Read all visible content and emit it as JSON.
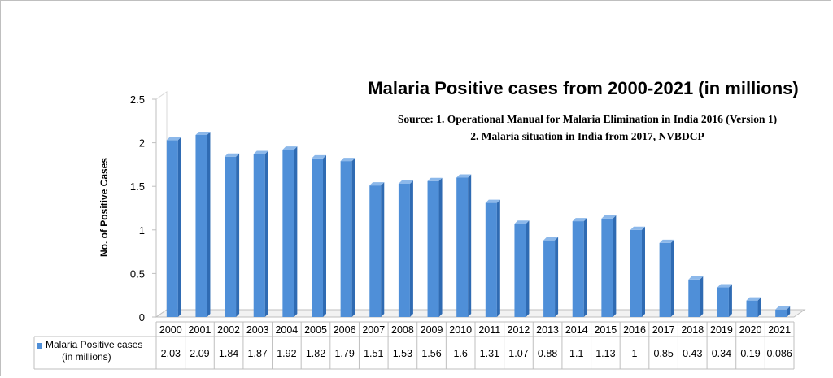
{
  "chart_data": {
    "type": "bar",
    "title": "Malaria Positive cases from 2000-2021 (in millions)",
    "source_line_1": "Source: 1. Operational Manual for Malaria Elimination in India 2016 (Version 1)",
    "source_line_2": "2. Malaria situation in India from 2017, NVBDCP",
    "ylabel": "No. of Positive Cases",
    "ylim": [
      0,
      2.5
    ],
    "yticks": [
      "0",
      "0.5",
      "1",
      "1.5",
      "2",
      "2.5"
    ],
    "categories": [
      "2000",
      "2001",
      "2002",
      "2003",
      "2004",
      "2005",
      "2006",
      "2007",
      "2008",
      "2009",
      "2010",
      "2011",
      "2012",
      "2013",
      "2014",
      "2015",
      "2016",
      "2017",
      "2018",
      "2019",
      "2020",
      "2021"
    ],
    "series": [
      {
        "name": "Malaria Positive cases (in millions)",
        "legend_line_1": "Malaria Positive cases",
        "legend_line_2": "(in millions)",
        "color": "#4f8fd8",
        "values": [
          2.03,
          2.09,
          1.84,
          1.87,
          1.92,
          1.82,
          1.79,
          1.51,
          1.53,
          1.56,
          1.6,
          1.31,
          1.07,
          0.88,
          1.1,
          1.13,
          1,
          0.85,
          0.43,
          0.34,
          0.19,
          0.086
        ],
        "value_labels": [
          "2.03",
          "2.09",
          "1.84",
          "1.87",
          "1.92",
          "1.82",
          "1.79",
          "1.51",
          "1.53",
          "1.56",
          "1.6",
          "1.31",
          "1.07",
          "0.88",
          "1.1",
          "1.13",
          "1",
          "0.85",
          "0.43",
          "0.34",
          "0.19",
          "0.086"
        ]
      }
    ],
    "grid": false,
    "legend": "data-table",
    "style": "3d-column"
  }
}
